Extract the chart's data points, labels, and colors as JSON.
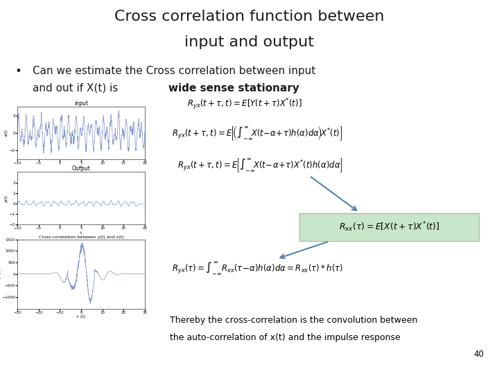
{
  "title_line1": "Cross correlation function between",
  "title_line2": "input and output",
  "bullet_text1": "Can we estimate the Cross correlation between input",
  "bullet_text2": "and out if X(t) is ",
  "bullet_bold": "wide sense stationary",
  "bottom_text1": "Thereby the cross-correlation is the convolution between",
  "bottom_text2": "the auto-correlation of x(t) and the impulse response",
  "page_num": "40",
  "background": "#ffffff",
  "title_color": "#1a1a1a",
  "bullet_color": "#1a1a1a",
  "eq_highlight_bg": "#c8e6c9",
  "plot_color": "#8899cc",
  "arrow_color": "#4a7aaa"
}
